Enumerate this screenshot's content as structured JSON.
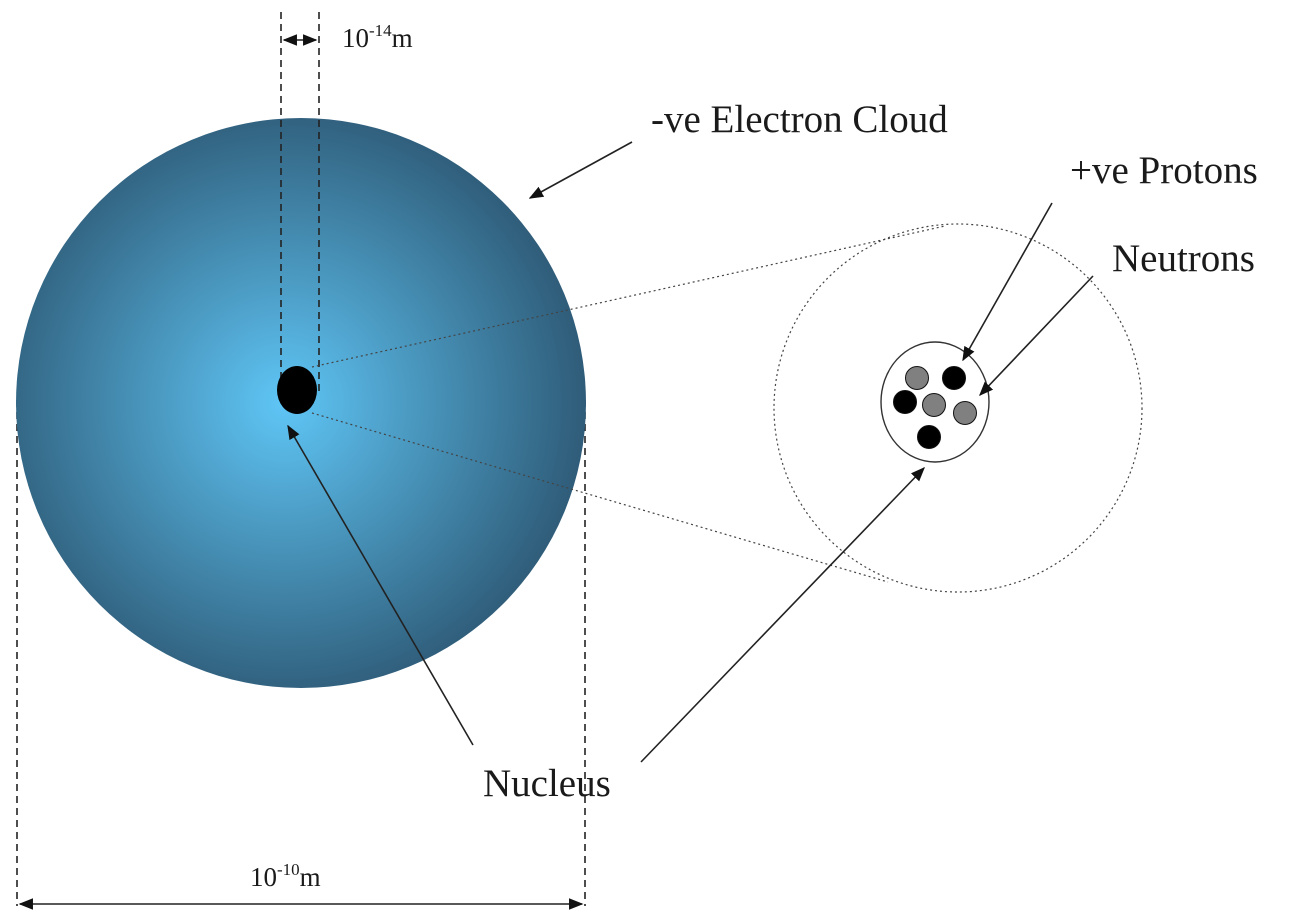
{
  "labels": {
    "electron_cloud": "-ve Electron Cloud",
    "protons": "+ve Protons",
    "neutrons": "Neutrons",
    "nucleus": "Nucleus",
    "nucleus_size_base": "10",
    "nucleus_size_exp": "-14",
    "nucleus_size_unit": "m",
    "atom_size_base": "10",
    "atom_size_exp": "-10",
    "atom_size_unit": "m"
  },
  "colors": {
    "cloud_center": "#5fc6f6",
    "cloud_edge": "#2d5874",
    "proton": "#000000",
    "neutron": "#808080"
  },
  "particles": [
    {
      "kind": "neutron"
    },
    {
      "kind": "proton"
    },
    {
      "kind": "proton"
    },
    {
      "kind": "neutron"
    },
    {
      "kind": "neutron"
    },
    {
      "kind": "proton"
    }
  ]
}
